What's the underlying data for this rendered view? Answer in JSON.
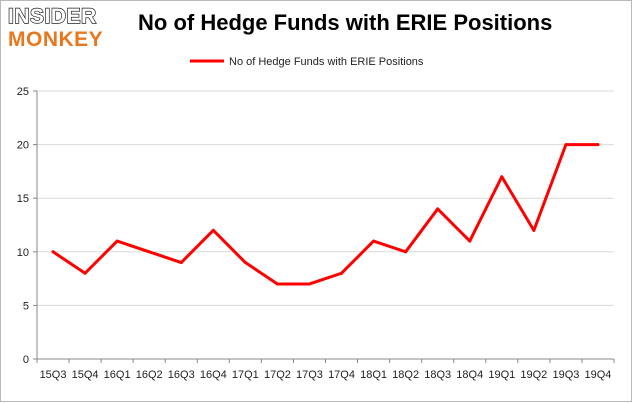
{
  "logo": {
    "line1": "INSIDER",
    "line2": "MONKEY"
  },
  "chart_data": {
    "type": "line",
    "title": "No of Hedge Funds with ERIE Positions",
    "categories": [
      "15Q3",
      "15Q4",
      "16Q1",
      "16Q2",
      "16Q3",
      "16Q4",
      "17Q1",
      "17Q2",
      "17Q3",
      "17Q4",
      "18Q1",
      "18Q2",
      "18Q3",
      "18Q4",
      "19Q1",
      "19Q2",
      "19Q3",
      "19Q4"
    ],
    "series": [
      {
        "name": "No of Hedge Funds with ERIE Positions",
        "values": [
          10,
          8,
          11,
          10,
          9,
          12,
          9,
          7,
          7,
          8,
          11,
          10,
          14,
          11,
          17,
          12,
          20,
          20
        ]
      }
    ],
    "ylim": [
      0,
      25
    ],
    "yticks": [
      0,
      5,
      10,
      15,
      20,
      25
    ],
    "xlabel": "",
    "ylabel": "",
    "grid": true,
    "legend_position": "top",
    "colors": {
      "series": "#ff0000",
      "grid": "#d9d9d9",
      "axis": "#888888"
    }
  }
}
